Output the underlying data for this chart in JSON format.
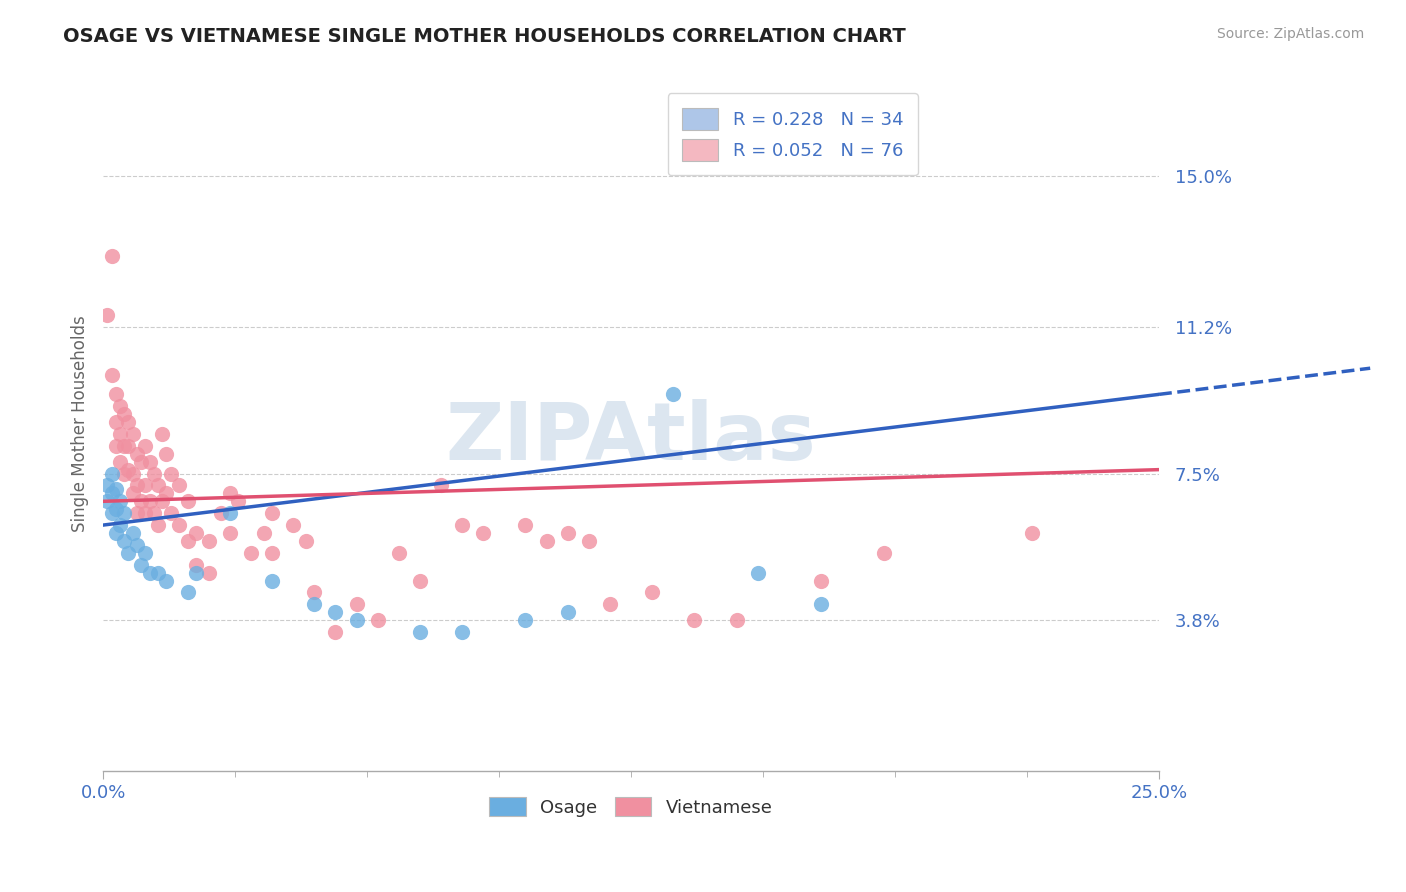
{
  "title": "OSAGE VS VIETNAMESE SINGLE MOTHER HOUSEHOLDS CORRELATION CHART",
  "source_text": "Source: ZipAtlas.com",
  "ylabel": "Single Mother Households",
  "xlim": [
    0.0,
    0.25
  ],
  "ylim": [
    0.0,
    0.175
  ],
  "xtick_labels": [
    "0.0%",
    "25.0%"
  ],
  "xtick_positions": [
    0.0,
    0.25
  ],
  "ytick_labels": [
    "3.8%",
    "7.5%",
    "11.2%",
    "15.0%"
  ],
  "ytick_positions": [
    0.038,
    0.075,
    0.112,
    0.15
  ],
  "legend_entries": [
    {
      "label": "R = 0.228   N = 34",
      "color": "#aec6e8"
    },
    {
      "label": "R = 0.052   N = 76",
      "color": "#f4b8c1"
    }
  ],
  "osage_color": "#6aaee0",
  "vietnamese_color": "#f090a0",
  "osage_line_color": "#3060c0",
  "vietnamese_line_color": "#e05070",
  "background_color": "#ffffff",
  "grid_color": "#cccccc",
  "title_color": "#222222",
  "axis_label_color": "#666666",
  "tick_label_color": "#4472c4",
  "watermark_color": "#dce6f0",
  "osage_scatter": [
    [
      0.001,
      0.068
    ],
    [
      0.001,
      0.072
    ],
    [
      0.002,
      0.065
    ],
    [
      0.002,
      0.07
    ],
    [
      0.002,
      0.075
    ],
    [
      0.003,
      0.06
    ],
    [
      0.003,
      0.066
    ],
    [
      0.003,
      0.071
    ],
    [
      0.004,
      0.062
    ],
    [
      0.004,
      0.068
    ],
    [
      0.005,
      0.065
    ],
    [
      0.005,
      0.058
    ],
    [
      0.006,
      0.055
    ],
    [
      0.007,
      0.06
    ],
    [
      0.008,
      0.057
    ],
    [
      0.009,
      0.052
    ],
    [
      0.01,
      0.055
    ],
    [
      0.011,
      0.05
    ],
    [
      0.013,
      0.05
    ],
    [
      0.015,
      0.048
    ],
    [
      0.02,
      0.045
    ],
    [
      0.022,
      0.05
    ],
    [
      0.03,
      0.065
    ],
    [
      0.04,
      0.048
    ],
    [
      0.05,
      0.042
    ],
    [
      0.055,
      0.04
    ],
    [
      0.06,
      0.038
    ],
    [
      0.075,
      0.035
    ],
    [
      0.085,
      0.035
    ],
    [
      0.1,
      0.038
    ],
    [
      0.11,
      0.04
    ],
    [
      0.135,
      0.095
    ],
    [
      0.155,
      0.05
    ],
    [
      0.17,
      0.042
    ]
  ],
  "vietnamese_scatter": [
    [
      0.001,
      0.115
    ],
    [
      0.002,
      0.13
    ],
    [
      0.002,
      0.1
    ],
    [
      0.003,
      0.095
    ],
    [
      0.003,
      0.088
    ],
    [
      0.003,
      0.082
    ],
    [
      0.004,
      0.092
    ],
    [
      0.004,
      0.085
    ],
    [
      0.004,
      0.078
    ],
    [
      0.005,
      0.09
    ],
    [
      0.005,
      0.082
    ],
    [
      0.005,
      0.075
    ],
    [
      0.006,
      0.088
    ],
    [
      0.006,
      0.082
    ],
    [
      0.006,
      0.076
    ],
    [
      0.007,
      0.085
    ],
    [
      0.007,
      0.075
    ],
    [
      0.007,
      0.07
    ],
    [
      0.008,
      0.08
    ],
    [
      0.008,
      0.072
    ],
    [
      0.008,
      0.065
    ],
    [
      0.009,
      0.078
    ],
    [
      0.009,
      0.068
    ],
    [
      0.01,
      0.082
    ],
    [
      0.01,
      0.072
    ],
    [
      0.01,
      0.065
    ],
    [
      0.011,
      0.078
    ],
    [
      0.011,
      0.068
    ],
    [
      0.012,
      0.075
    ],
    [
      0.012,
      0.065
    ],
    [
      0.013,
      0.072
    ],
    [
      0.013,
      0.062
    ],
    [
      0.014,
      0.085
    ],
    [
      0.014,
      0.068
    ],
    [
      0.015,
      0.08
    ],
    [
      0.015,
      0.07
    ],
    [
      0.016,
      0.075
    ],
    [
      0.016,
      0.065
    ],
    [
      0.018,
      0.072
    ],
    [
      0.018,
      0.062
    ],
    [
      0.02,
      0.068
    ],
    [
      0.02,
      0.058
    ],
    [
      0.022,
      0.06
    ],
    [
      0.022,
      0.052
    ],
    [
      0.025,
      0.058
    ],
    [
      0.025,
      0.05
    ],
    [
      0.028,
      0.065
    ],
    [
      0.03,
      0.07
    ],
    [
      0.03,
      0.06
    ],
    [
      0.032,
      0.068
    ],
    [
      0.035,
      0.055
    ],
    [
      0.038,
      0.06
    ],
    [
      0.04,
      0.065
    ],
    [
      0.04,
      0.055
    ],
    [
      0.045,
      0.062
    ],
    [
      0.048,
      0.058
    ],
    [
      0.05,
      0.045
    ],
    [
      0.055,
      0.035
    ],
    [
      0.06,
      0.042
    ],
    [
      0.065,
      0.038
    ],
    [
      0.07,
      0.055
    ],
    [
      0.075,
      0.048
    ],
    [
      0.08,
      0.072
    ],
    [
      0.085,
      0.062
    ],
    [
      0.09,
      0.06
    ],
    [
      0.1,
      0.062
    ],
    [
      0.105,
      0.058
    ],
    [
      0.11,
      0.06
    ],
    [
      0.115,
      0.058
    ],
    [
      0.12,
      0.042
    ],
    [
      0.13,
      0.045
    ],
    [
      0.14,
      0.038
    ],
    [
      0.15,
      0.038
    ],
    [
      0.17,
      0.048
    ],
    [
      0.185,
      0.055
    ],
    [
      0.22,
      0.06
    ]
  ],
  "R_osage": 0.228,
  "N_osage": 34,
  "R_vietnamese": 0.052,
  "N_vietnamese": 76
}
